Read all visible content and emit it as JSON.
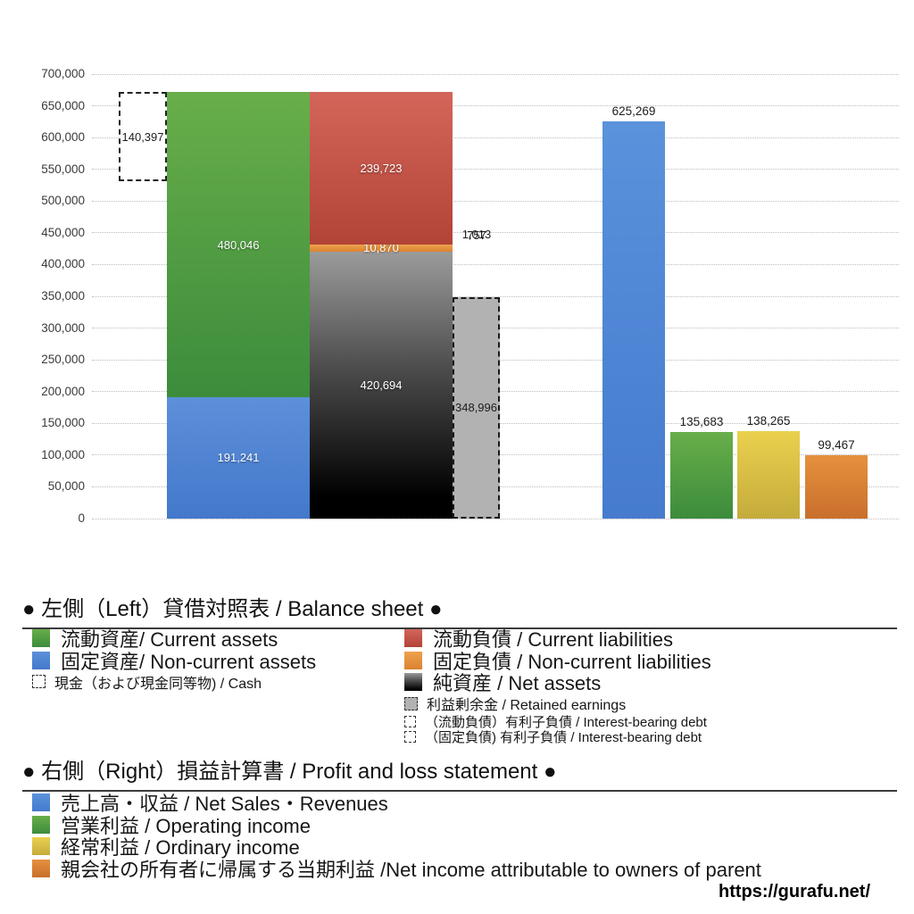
{
  "chart_data": {
    "type": "bar",
    "title": "",
    "ylim": [
      0,
      700000
    ],
    "y_ticks": [
      "0",
      "50,000",
      "100,000",
      "150,000",
      "200,000",
      "250,000",
      "300,000",
      "350,000",
      "400,000",
      "450,000",
      "500,000",
      "550,000",
      "600,000",
      "650,000",
      "700,000"
    ],
    "grid": "dotted horizontal",
    "balance_sheet": {
      "assets_stack": [
        {
          "slug": "non-current-assets",
          "name": "固定資産 / Non-current assets",
          "value": 191241,
          "label": "191,241",
          "color_key": "blue"
        },
        {
          "slug": "current-assets",
          "name": "流動資産 / Current assets",
          "value": 480046,
          "label": "480,046",
          "color_key": "green"
        }
      ],
      "liabilities_stack": [
        {
          "slug": "net-assets",
          "name": "純資産 / Net assets",
          "value": 420694,
          "label": "420,694",
          "color_key": "net-assets"
        },
        {
          "slug": "non-current-liabilities",
          "name": "固定負債 / Non-current liabilities",
          "value": 10870,
          "label": "10,870",
          "color_key": "orange"
        },
        {
          "slug": "current-liabilities",
          "name": "流動負債 / Current liabilities",
          "value": 239723,
          "label": "239,723",
          "color_key": "red"
        }
      ],
      "retained_earnings": {
        "slug": "retained-earnings",
        "name": "利益剰余金 / Retained earnings",
        "value": 348996,
        "label": "348,996"
      },
      "cash": {
        "slug": "cash",
        "name": "現金（および現金同等物）/ Cash",
        "value": 140397,
        "label": "140,397"
      },
      "interest_bearing_debt": {
        "current_label": "1,013",
        "non_current_label": "757"
      }
    },
    "profit_loss": [
      {
        "slug": "net-sales",
        "name": "売上高・収益 / Net Sales・Revenues",
        "value": 625269,
        "label": "625,269",
        "color_key": "pl-blue"
      },
      {
        "slug": "operating-income",
        "name": "営業利益 / Operating income",
        "value": 135683,
        "label": "135,683",
        "color_key": "green"
      },
      {
        "slug": "ordinary-income",
        "name": "経常利益 / Ordinary income",
        "value": 138265,
        "label": "138,265",
        "color_key": "yellow"
      },
      {
        "slug": "net-income",
        "name": "親会社の所有者に帰属する当期利益 / Net income attributable to owners of parent",
        "value": 99467,
        "label": "99,467",
        "color_key": "pl-orange"
      }
    ],
    "colors": {
      "green": "#4e9a43",
      "blue": "#5188d4",
      "red": "#c05045",
      "orange": "#e2943f",
      "yellow": "#ddc246",
      "net_assets_top": "#9b9b9b",
      "net_assets_bottom": "#000000",
      "retained": "#b2b2b2",
      "pl_blue": "#5188d4",
      "pl_orange": "#da8335"
    }
  },
  "legend_balance_sheet": {
    "header": "● 左側（Left）貸借対照表 / Balance sheet ●",
    "left_items": [
      {
        "slug": "current-assets",
        "swatch": "green",
        "size": "large",
        "label": "流動資産/ Current assets"
      },
      {
        "slug": "non-current-assets",
        "swatch": "blue",
        "size": "large",
        "label": "固定資産/ Non-current assets"
      },
      {
        "slug": "cash",
        "swatch": "dashed-white",
        "size": "small",
        "label": "現金（および現金同等物) / Cash"
      }
    ],
    "right_items": [
      {
        "slug": "current-liabilities",
        "swatch": "red",
        "size": "large",
        "label": "流動負債 /  Current liabilities"
      },
      {
        "slug": "non-current-liabilities",
        "swatch": "orange",
        "size": "large",
        "label": "固定負債 / Non-current liabilities"
      },
      {
        "slug": "net-assets",
        "swatch": "net-assets",
        "size": "large",
        "label": "純資産 / Net assets"
      },
      {
        "slug": "retained-earnings",
        "swatch": "retained",
        "size": "small",
        "label": "利益剰余金 / Retained earnings"
      },
      {
        "slug": "interest-bearing-debt-current",
        "swatch": "dashed-white",
        "size": "xsmall",
        "label": "（流動負債）有利子負債 / Interest-bearing debt"
      },
      {
        "slug": "interest-bearing-debt-non-current",
        "swatch": "dashed-white",
        "size": "xsmall",
        "label": "（固定負債) 有利子負債 / Interest-bearing debt"
      }
    ]
  },
  "legend_profit_loss": {
    "header": "● 右側（Right）損益計算書 / Profit and loss statement ●",
    "items": [
      {
        "slug": "net-sales",
        "swatch": "pl-blue",
        "label": "売上高・収益 / Net Sales・Revenues"
      },
      {
        "slug": "operating-income",
        "swatch": "green",
        "label": "営業利益 / Operating income"
      },
      {
        "slug": "ordinary-income",
        "swatch": "yellow",
        "label": "経常利益 / Ordinary income"
      },
      {
        "slug": "net-income",
        "swatch": "pl-orange",
        "label": "親会社の所有者に帰属する当期利益 /Net income attributable to owners of parent"
      }
    ]
  },
  "footer": {
    "url": "https://gurafu.net/"
  }
}
